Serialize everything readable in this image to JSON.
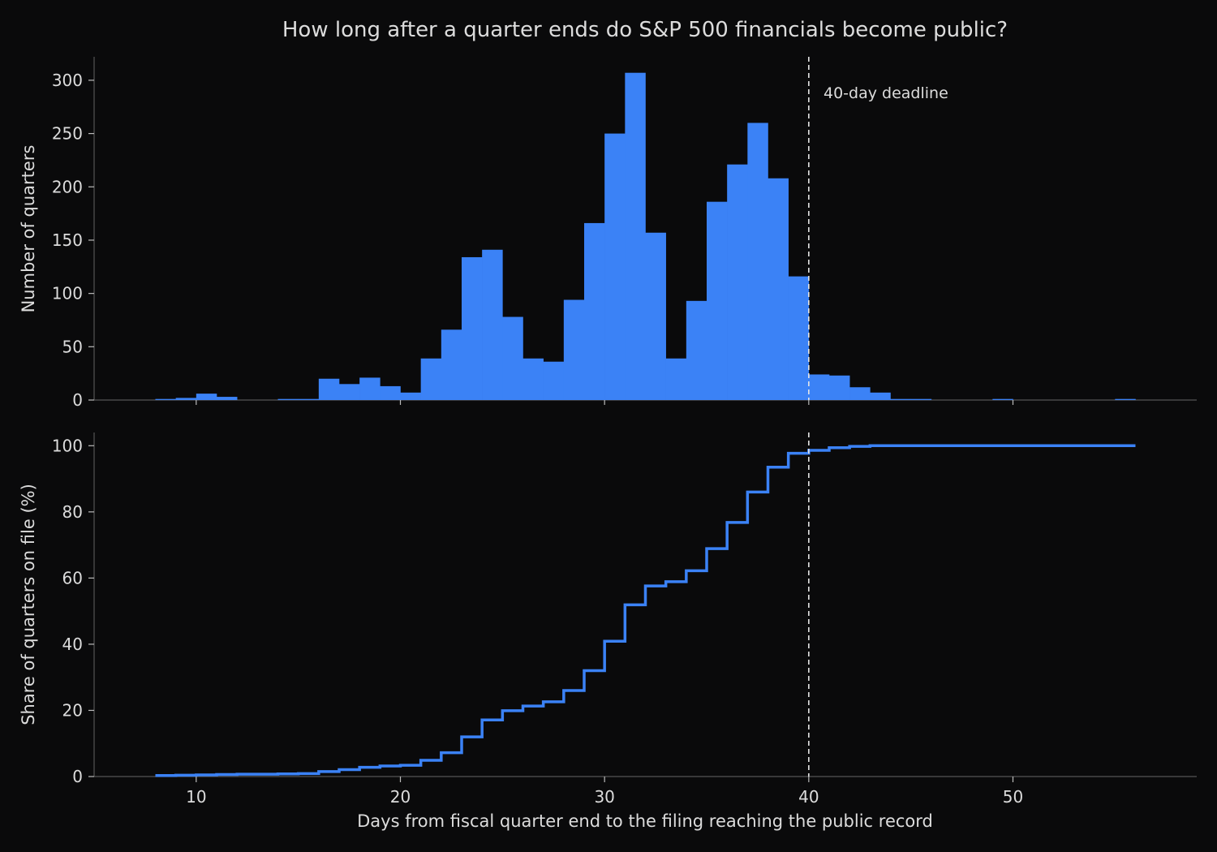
{
  "chart_data": [
    {
      "type": "bar",
      "title": "How long after a quarter ends do S&P 500 financials become public?",
      "ylabel": "Number of quarters",
      "xlabel": "",
      "xlim": [
        5,
        59
      ],
      "ylim": [
        0,
        322
      ],
      "yticks": [
        0,
        50,
        100,
        150,
        200,
        250,
        300
      ],
      "bin_width": 1,
      "bin_starts": [
        8,
        9,
        10,
        11,
        12,
        13,
        14,
        15,
        16,
        17,
        18,
        19,
        20,
        21,
        22,
        23,
        24,
        25,
        26,
        27,
        28,
        29,
        30,
        31,
        32,
        33,
        34,
        35,
        36,
        37,
        38,
        39,
        40,
        41,
        42,
        43,
        44,
        45,
        46,
        47,
        48,
        49,
        50,
        51,
        52,
        53,
        54,
        55
      ],
      "values": [
        1,
        2,
        6,
        3,
        0,
        0,
        1,
        1,
        20,
        15,
        21,
        13,
        7,
        39,
        66,
        134,
        141,
        78,
        39,
        36,
        94,
        166,
        250,
        307,
        157,
        39,
        93,
        186,
        221,
        260,
        208,
        116,
        24,
        23,
        12,
        7,
        1,
        1,
        0,
        0,
        0,
        1,
        0,
        0,
        0,
        0,
        0,
        1
      ],
      "color": "#3b82f6",
      "annotation": {
        "x": 40,
        "label": "40-day deadline"
      }
    },
    {
      "type": "line",
      "step": true,
      "ylabel": "Share of quarters on file (%)",
      "xlabel": "Days from fiscal quarter end to the filing reaching the public record",
      "xlim": [
        5,
        59
      ],
      "ylim": [
        0,
        104
      ],
      "yticks": [
        0,
        20,
        40,
        60,
        80,
        100
      ],
      "xticks": [
        10,
        20,
        30,
        40,
        50
      ],
      "x": [
        8,
        9,
        10,
        11,
        12,
        13,
        14,
        15,
        16,
        17,
        18,
        19,
        20,
        21,
        22,
        23,
        24,
        25,
        26,
        27,
        28,
        29,
        30,
        31,
        32,
        33,
        34,
        35,
        36,
        37,
        38,
        39,
        40,
        41,
        42,
        43,
        44,
        56
      ],
      "y": [
        0.3,
        0.4,
        0.5,
        0.6,
        0.7,
        0.7,
        0.8,
        0.9,
        1.5,
        2.1,
        2.8,
        3.2,
        3.4,
        4.9,
        7.2,
        12.0,
        17.1,
        19.9,
        21.3,
        22.6,
        26.0,
        32.0,
        40.9,
        51.9,
        57.6,
        58.9,
        62.2,
        68.9,
        76.8,
        86.0,
        93.5,
        97.7,
        98.6,
        99.4,
        99.8,
        100.0,
        100.0,
        100.0
      ],
      "color": "#3b82f6",
      "deadline_x": 40
    }
  ],
  "colors": {
    "background": "#0a0a0b",
    "accent": "#3b82f6",
    "text": "#dcdcdc",
    "axis": "#555555"
  }
}
